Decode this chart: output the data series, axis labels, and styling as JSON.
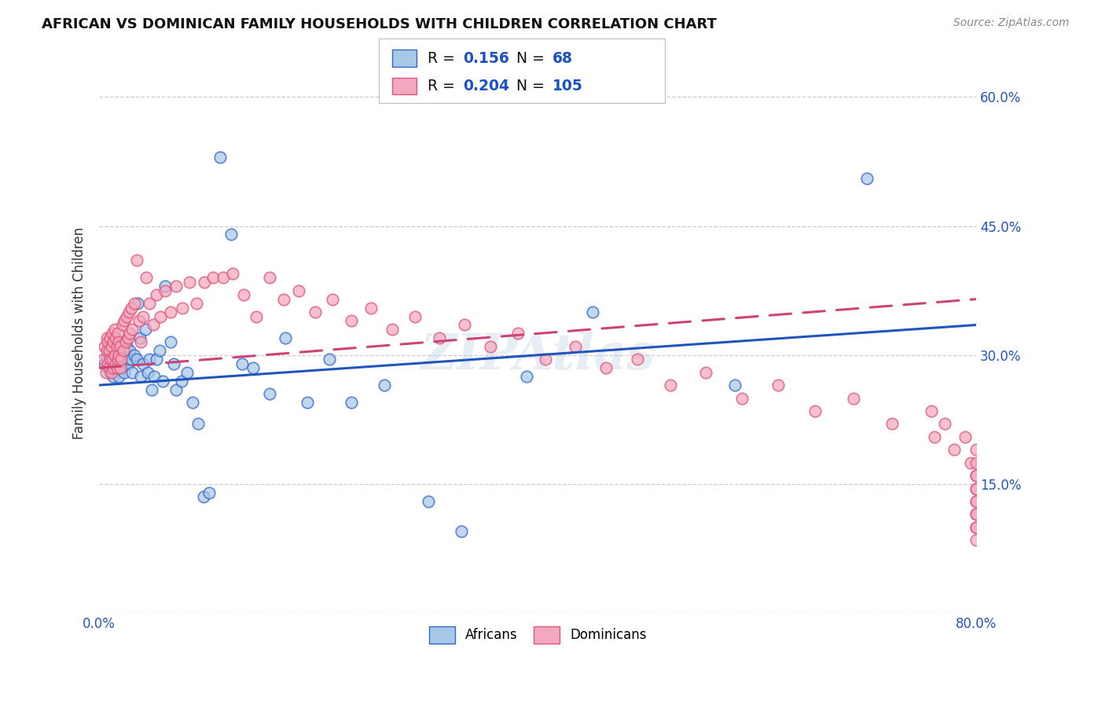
{
  "title": "AFRICAN VS DOMINICAN FAMILY HOUSEHOLDS WITH CHILDREN CORRELATION CHART",
  "source": "Source: ZipAtlas.com",
  "ylabel": "Family Households with Children",
  "xlim": [
    0.0,
    0.8
  ],
  "ylim": [
    0.0,
    0.65
  ],
  "ytick_positions": [
    0.15,
    0.3,
    0.45,
    0.6
  ],
  "ytick_labels": [
    "15.0%",
    "30.0%",
    "45.0%",
    "60.0%"
  ],
  "african_R": 0.156,
  "african_N": 68,
  "dominican_R": 0.204,
  "dominican_N": 105,
  "african_color": "#a8c8e8",
  "dominican_color": "#f4a8c0",
  "african_edge_color": "#3366cc",
  "dominican_edge_color": "#dd5577",
  "african_line_color": "#2255bb",
  "dominican_line_color": "#cc4477",
  "background_color": "#ffffff",
  "grid_color": "#cccccc",
  "legend_color": "#1a52c4",
  "title_color": "#111111",
  "source_color": "#888888",
  "ylabel_color": "#333333",
  "tick_color": "#2255bb",
  "marker_size": 110,
  "marker_edge_width": 1.3,
  "marker_alpha": 0.72,
  "africans_x": [
    0.005,
    0.007,
    0.008,
    0.009,
    0.01,
    0.01,
    0.011,
    0.012,
    0.013,
    0.014,
    0.015,
    0.015,
    0.016,
    0.017,
    0.018,
    0.019,
    0.02,
    0.02,
    0.021,
    0.022,
    0.023,
    0.024,
    0.025,
    0.026,
    0.027,
    0.028,
    0.029,
    0.03,
    0.032,
    0.034,
    0.035,
    0.037,
    0.038,
    0.04,
    0.042,
    0.044,
    0.046,
    0.048,
    0.05,
    0.052,
    0.055,
    0.058,
    0.06,
    0.065,
    0.068,
    0.07,
    0.075,
    0.08,
    0.085,
    0.09,
    0.095,
    0.1,
    0.11,
    0.12,
    0.13,
    0.14,
    0.155,
    0.17,
    0.19,
    0.21,
    0.23,
    0.26,
    0.3,
    0.33,
    0.39,
    0.45,
    0.58,
    0.7
  ],
  "africans_y": [
    0.29,
    0.295,
    0.285,
    0.3,
    0.31,
    0.28,
    0.295,
    0.305,
    0.275,
    0.315,
    0.29,
    0.285,
    0.3,
    0.31,
    0.275,
    0.295,
    0.305,
    0.285,
    0.295,
    0.3,
    0.28,
    0.315,
    0.31,
    0.29,
    0.295,
    0.305,
    0.295,
    0.28,
    0.3,
    0.295,
    0.36,
    0.32,
    0.275,
    0.29,
    0.33,
    0.28,
    0.295,
    0.26,
    0.275,
    0.295,
    0.305,
    0.27,
    0.38,
    0.315,
    0.29,
    0.26,
    0.27,
    0.28,
    0.245,
    0.22,
    0.135,
    0.14,
    0.53,
    0.44,
    0.29,
    0.285,
    0.255,
    0.32,
    0.245,
    0.295,
    0.245,
    0.265,
    0.13,
    0.095,
    0.275,
    0.35,
    0.265,
    0.505
  ],
  "dominicans_x": [
    0.004,
    0.005,
    0.006,
    0.007,
    0.007,
    0.008,
    0.008,
    0.009,
    0.009,
    0.01,
    0.01,
    0.011,
    0.011,
    0.012,
    0.012,
    0.013,
    0.013,
    0.014,
    0.014,
    0.015,
    0.015,
    0.016,
    0.016,
    0.017,
    0.017,
    0.018,
    0.018,
    0.019,
    0.019,
    0.02,
    0.021,
    0.022,
    0.023,
    0.024,
    0.025,
    0.026,
    0.027,
    0.028,
    0.029,
    0.03,
    0.032,
    0.034,
    0.036,
    0.038,
    0.04,
    0.043,
    0.046,
    0.049,
    0.052,
    0.056,
    0.06,
    0.065,
    0.07,
    0.076,
    0.082,
    0.089,
    0.096,
    0.104,
    0.113,
    0.122,
    0.132,
    0.143,
    0.155,
    0.168,
    0.182,
    0.197,
    0.213,
    0.23,
    0.248,
    0.267,
    0.288,
    0.31,
    0.333,
    0.357,
    0.382,
    0.407,
    0.434,
    0.462,
    0.491,
    0.521,
    0.553,
    0.586,
    0.619,
    0.653,
    0.688,
    0.723,
    0.759,
    0.762,
    0.771,
    0.78,
    0.79,
    0.795,
    0.8,
    0.8,
    0.8,
    0.8,
    0.8,
    0.8,
    0.8,
    0.8,
    0.8,
    0.8,
    0.8,
    0.8,
    0.8
  ],
  "dominicans_y": [
    0.295,
    0.31,
    0.28,
    0.305,
    0.32,
    0.29,
    0.315,
    0.285,
    0.305,
    0.295,
    0.32,
    0.28,
    0.31,
    0.295,
    0.325,
    0.285,
    0.315,
    0.3,
    0.33,
    0.29,
    0.32,
    0.285,
    0.31,
    0.295,
    0.325,
    0.3,
    0.315,
    0.285,
    0.31,
    0.295,
    0.335,
    0.305,
    0.34,
    0.315,
    0.345,
    0.32,
    0.35,
    0.325,
    0.355,
    0.33,
    0.36,
    0.41,
    0.34,
    0.315,
    0.345,
    0.39,
    0.36,
    0.335,
    0.37,
    0.345,
    0.375,
    0.35,
    0.38,
    0.355,
    0.385,
    0.36,
    0.385,
    0.39,
    0.39,
    0.395,
    0.37,
    0.345,
    0.39,
    0.365,
    0.375,
    0.35,
    0.365,
    0.34,
    0.355,
    0.33,
    0.345,
    0.32,
    0.335,
    0.31,
    0.325,
    0.295,
    0.31,
    0.285,
    0.295,
    0.265,
    0.28,
    0.25,
    0.265,
    0.235,
    0.25,
    0.22,
    0.235,
    0.205,
    0.22,
    0.19,
    0.205,
    0.175,
    0.19,
    0.16,
    0.175,
    0.145,
    0.16,
    0.13,
    0.145,
    0.115,
    0.13,
    0.1,
    0.115,
    0.085,
    0.1
  ],
  "line_african_x0": 0.0,
  "line_african_y0": 0.265,
  "line_african_x1": 0.8,
  "line_african_y1": 0.335,
  "line_dominican_x0": 0.0,
  "line_dominican_y0": 0.285,
  "line_dominican_x1": 0.8,
  "line_dominican_y1": 0.365
}
